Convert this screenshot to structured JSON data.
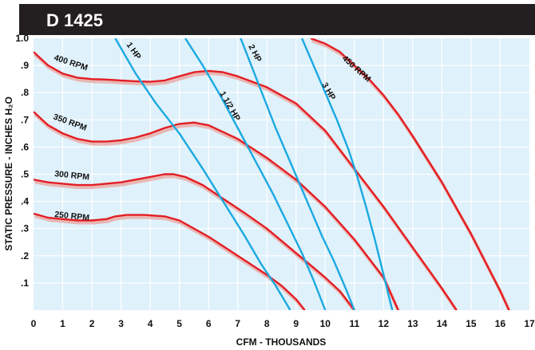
{
  "chart_data": {
    "type": "line",
    "title": "D 1425",
    "xlabel": "CFM - THOUSANDS",
    "ylabel": "STATIC PRESSURE - INCHES H₂O",
    "xlim": [
      0,
      17
    ],
    "ylim": [
      0,
      1.0
    ],
    "x_ticks": [
      "0",
      "1",
      "2",
      "3",
      "4",
      "5",
      "6",
      "7",
      "8",
      "9",
      "10",
      "11",
      "12",
      "13",
      "14",
      "15",
      "16",
      "17"
    ],
    "y_ticks": [
      ".1",
      ".2",
      ".3",
      ".4",
      ".5",
      ".6",
      ".7",
      ".8",
      ".9",
      "1.0"
    ],
    "grid": true,
    "legend": "none",
    "colors": {
      "title_bar": "#231f20",
      "plot_background": "#dff1fb",
      "grid": "#ffffff",
      "rpm_curve": "#e31e24",
      "rpm_shadow": "#e8b7b4",
      "hp_curve": "#1aa9e0"
    },
    "rpm_series": [
      {
        "name": "250 RPM",
        "x": [
          0,
          0.5,
          1,
          1.5,
          2,
          2.5,
          2.8,
          3.2,
          3.8,
          4.5,
          5,
          5.5,
          6,
          7,
          8,
          8.5,
          9,
          9.3
        ],
        "y": [
          0.355,
          0.34,
          0.335,
          0.33,
          0.33,
          0.335,
          0.345,
          0.35,
          0.35,
          0.345,
          0.33,
          0.3,
          0.27,
          0.2,
          0.13,
          0.09,
          0.04,
          0
        ]
      },
      {
        "name": "300 RPM",
        "x": [
          0,
          0.5,
          1,
          1.5,
          2,
          2.5,
          3,
          3.5,
          4,
          4.5,
          4.8,
          5.2,
          5.8,
          6.5,
          7.2,
          8,
          9,
          10,
          10.5,
          11
        ],
        "y": [
          0.48,
          0.47,
          0.465,
          0.46,
          0.46,
          0.465,
          0.47,
          0.48,
          0.49,
          0.5,
          0.5,
          0.49,
          0.46,
          0.41,
          0.36,
          0.3,
          0.21,
          0.12,
          0.07,
          0
        ]
      },
      {
        "name": "350 RPM",
        "x": [
          0,
          0.5,
          1,
          1.5,
          2,
          2.5,
          3,
          3.5,
          4,
          4.5,
          5,
          5.5,
          6,
          7,
          8,
          9,
          10,
          11,
          12,
          12.5
        ],
        "y": [
          0.73,
          0.68,
          0.65,
          0.63,
          0.62,
          0.62,
          0.625,
          0.635,
          0.65,
          0.67,
          0.685,
          0.69,
          0.68,
          0.63,
          0.56,
          0.48,
          0.38,
          0.26,
          0.12,
          0
        ]
      },
      {
        "name": "400 RPM",
        "x": [
          0,
          0.5,
          1,
          1.5,
          2,
          2.5,
          3,
          3.5,
          4,
          4.5,
          5,
          5.5,
          6,
          6.5,
          7,
          8,
          9,
          10,
          11,
          12,
          13,
          14,
          14.5
        ],
        "y": [
          0.95,
          0.9,
          0.87,
          0.855,
          0.85,
          0.848,
          0.845,
          0.842,
          0.84,
          0.845,
          0.86,
          0.875,
          0.88,
          0.875,
          0.86,
          0.82,
          0.76,
          0.66,
          0.52,
          0.38,
          0.23,
          0.08,
          0
        ]
      },
      {
        "name": "450 RPM",
        "x": [
          9.5,
          10,
          10.5,
          11,
          11.5,
          12,
          12.5,
          13,
          14,
          15,
          16,
          16.3
        ],
        "y": [
          1.0,
          0.98,
          0.95,
          0.9,
          0.85,
          0.79,
          0.72,
          0.64,
          0.47,
          0.28,
          0.07,
          0
        ]
      }
    ],
    "hp_series": [
      {
        "name": "1 HP",
        "x": [
          2.8,
          3.5,
          4.2,
          5,
          5.8,
          6.5,
          7.2,
          7.8,
          8.3,
          8.8
        ],
        "y": [
          1.0,
          0.87,
          0.76,
          0.65,
          0.52,
          0.4,
          0.28,
          0.17,
          0.09,
          0
        ]
      },
      {
        "name": "1 1/2 HP",
        "x": [
          5.2,
          5.8,
          6.4,
          7,
          7.6,
          8.2,
          8.7,
          9.2,
          9.6,
          10
        ],
        "y": [
          1.0,
          0.9,
          0.79,
          0.67,
          0.55,
          0.43,
          0.32,
          0.21,
          0.11,
          0
        ]
      },
      {
        "name": "2 HP",
        "x": [
          7.1,
          7.5,
          7.9,
          8.3,
          8.7,
          9.1,
          9.5,
          9.9,
          10.3,
          10.7,
          11
        ],
        "y": [
          1.0,
          0.89,
          0.78,
          0.67,
          0.57,
          0.47,
          0.37,
          0.27,
          0.18,
          0.08,
          0
        ]
      },
      {
        "name": "3 HP",
        "x": [
          9.2,
          9.6,
          10,
          10.4,
          10.8,
          11.1,
          11.4,
          11.7,
          12,
          12.3
        ],
        "y": [
          1.0,
          0.9,
          0.8,
          0.7,
          0.59,
          0.49,
          0.38,
          0.26,
          0.13,
          0
        ]
      }
    ]
  }
}
